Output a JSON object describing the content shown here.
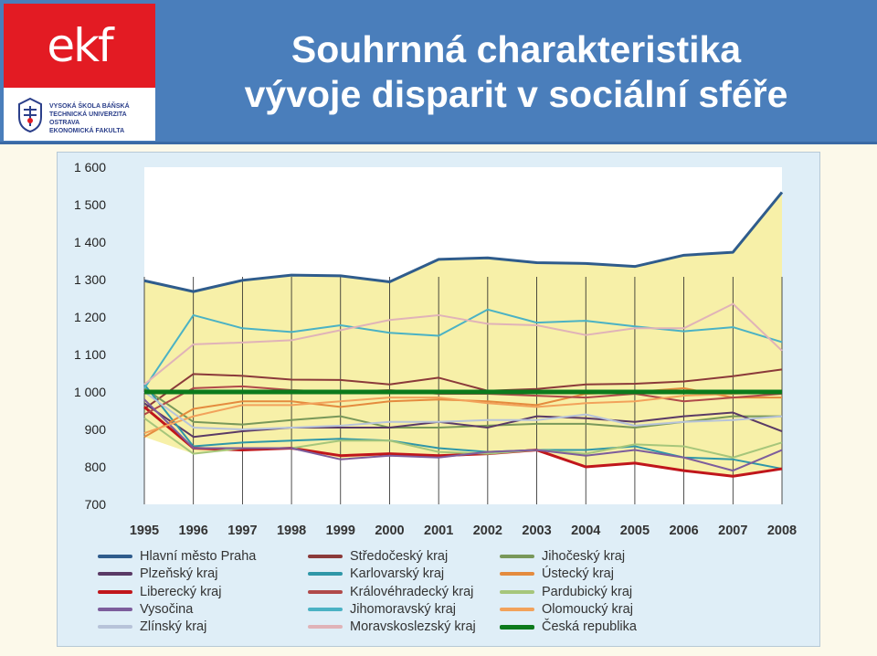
{
  "header": {
    "title_line1": "Souhrnná charakteristika",
    "title_line2": "vývoje disparit v sociální sféře",
    "bg_color": "#4a7ebb"
  },
  "logo": {
    "mark": "ekf",
    "lines": [
      "VYSOKÁ ŠKOLA BÁŇSKÁ",
      "TECHNICKÁ UNIVERZITA OSTRAVA",
      "EKONOMICKÁ FAKULTA"
    ],
    "icon": "university-crest-icon",
    "color": "#e31b23"
  },
  "chart_data": {
    "type": "line",
    "title": "",
    "xlabel": "",
    "ylabel": "",
    "x": [
      "1995",
      "1996",
      "1997",
      "1998",
      "1999",
      "2000",
      "2001",
      "2002",
      "2003",
      "2004",
      "2005",
      "2006",
      "2007",
      "2008"
    ],
    "ylim": [
      700,
      1600
    ],
    "yticks": [
      700,
      800,
      900,
      1000,
      1100,
      1200,
      1300,
      1400,
      1500,
      1600
    ],
    "ytick_labels": [
      "700",
      "800",
      "900",
      "1 000",
      "1 100",
      "1 200",
      "1 300",
      "1 400",
      "1 500",
      "1 600"
    ],
    "grid": "vertical",
    "legend_position": "bottom",
    "band": {
      "upper": "Hlavní město Praha",
      "lower_min": true,
      "color": "#f7f0a8"
    },
    "series": [
      {
        "name": "Hlavní město Praha",
        "color": "#2f5c8c",
        "width": 3,
        "values": [
          1297,
          1268,
          1298,
          1312,
          1310,
          1294,
          1354,
          1358,
          1345,
          1343,
          1335,
          1365,
          1373,
          1533
        ]
      },
      {
        "name": "Středočeský kraj",
        "color": "#8b3a3a",
        "width": 2,
        "values": [
          955,
          1048,
          1043,
          1033,
          1032,
          1020,
          1038,
          1003,
          1008,
          1020,
          1022,
          1028,
          1042,
          1060
        ]
      },
      {
        "name": "Jihočeský kraj",
        "color": "#79985a",
        "width": 2,
        "values": [
          1010,
          920,
          913,
          925,
          935,
          905,
          905,
          910,
          915,
          915,
          905,
          920,
          935,
          935
        ]
      },
      {
        "name": "Plzeňský kraj",
        "color": "#5a3a66",
        "width": 2,
        "values": [
          970,
          880,
          895,
          905,
          905,
          905,
          920,
          905,
          935,
          930,
          920,
          935,
          945,
          895
        ]
      },
      {
        "name": "Karlovarský kraj",
        "color": "#2f97a8",
        "width": 2,
        "values": [
          1020,
          855,
          865,
          870,
          875,
          870,
          850,
          840,
          845,
          845,
          855,
          825,
          820,
          795
        ]
      },
      {
        "name": "Ústecký kraj",
        "color": "#e48b3e",
        "width": 2,
        "values": [
          880,
          955,
          975,
          975,
          960,
          975,
          980,
          975,
          965,
          995,
          1000,
          1010,
          985,
          985
        ]
      },
      {
        "name": "Liberecký kraj",
        "color": "#c0161b",
        "width": 3,
        "values": [
          960,
          850,
          845,
          850,
          830,
          835,
          830,
          835,
          845,
          800,
          810,
          790,
          775,
          795
        ]
      },
      {
        "name": "Královéhradecký kraj",
        "color": "#b04a4a",
        "width": 2,
        "values": [
          940,
          1010,
          1015,
          1005,
          1000,
          1005,
          995,
          995,
          990,
          985,
          995,
          975,
          985,
          995
        ]
      },
      {
        "name": "Pardubický kraj",
        "color": "#a6c67b",
        "width": 2,
        "values": [
          930,
          835,
          850,
          850,
          870,
          870,
          840,
          835,
          845,
          835,
          860,
          855,
          825,
          865
        ]
      },
      {
        "name": "Vysočina",
        "color": "#7d5d9c",
        "width": 2,
        "values": [
          980,
          850,
          850,
          850,
          820,
          830,
          825,
          840,
          845,
          830,
          845,
          825,
          790,
          845
        ]
      },
      {
        "name": "Jihomoravský kraj",
        "color": "#4bb2c4",
        "width": 2,
        "values": [
          1010,
          1205,
          1170,
          1160,
          1178,
          1158,
          1150,
          1220,
          1185,
          1190,
          1175,
          1162,
          1173,
          1133
        ]
      },
      {
        "name": "Olomoucký kraj",
        "color": "#f2a25b",
        "width": 2,
        "values": [
          890,
          935,
          965,
          965,
          975,
          985,
          985,
          970,
          960,
          970,
          975,
          990,
          995,
          1000
        ]
      },
      {
        "name": "Zlínský kraj",
        "color": "#b7c3d9",
        "width": 2,
        "values": [
          1000,
          905,
          900,
          905,
          910,
          920,
          920,
          925,
          925,
          940,
          910,
          920,
          925,
          935
        ]
      },
      {
        "name": "Moravskoslezský kraj",
        "color": "#e0b3b8",
        "width": 2,
        "values": [
          1020,
          1127,
          1132,
          1138,
          1165,
          1192,
          1205,
          1182,
          1178,
          1152,
          1170,
          1170,
          1235,
          1110
        ]
      },
      {
        "name": "Česká republika",
        "color": "#0c7a1c",
        "width": 5,
        "values": [
          1000,
          1000,
          1000,
          1000,
          1000,
          1000,
          1000,
          1000,
          1000,
          1000,
          1000,
          1000,
          1000,
          1000
        ]
      }
    ]
  }
}
